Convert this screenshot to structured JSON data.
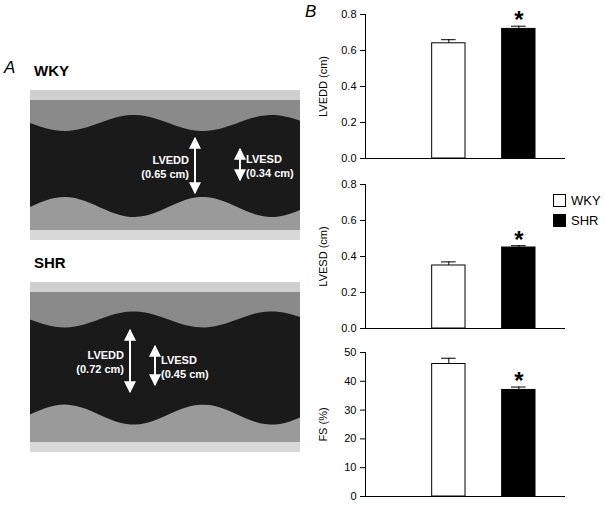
{
  "panel_labels": [
    "A",
    "B"
  ],
  "panel_a": {
    "images": [
      {
        "title": "WKY",
        "markers": [
          {
            "lines": [
              "LVEDD",
              "(0.65 cm)"
            ]
          },
          {
            "lines": [
              "LVESD",
              "(0.34 cm)"
            ]
          }
        ]
      },
      {
        "title": "SHR",
        "markers": [
          {
            "lines": [
              "LVEDD",
              "(0.72 cm)"
            ]
          },
          {
            "lines": [
              "LVESD",
              "(0.45 cm)"
            ]
          }
        ]
      }
    ]
  },
  "chart_data": [
    {
      "type": "bar",
      "ylabel": "LVEDD (cm)",
      "categories": [
        null
      ],
      "series": [
        {
          "name": "WKY",
          "color": "#ffffff",
          "values": [
            0.64
          ],
          "errors": [
            0.02
          ]
        },
        {
          "name": "SHR",
          "color": "#000000",
          "values": [
            0.72
          ],
          "errors": [
            0.015
          ],
          "annotation": "*"
        }
      ],
      "ylim": [
        0,
        0.8
      ],
      "yticks": [
        {
          "value": 0,
          "label": "0.0"
        },
        0.2,
        0.4,
        0.6,
        0.8
      ],
      "tick_labels": "y"
    },
    {
      "type": "bar",
      "ylabel": "LVESD (cm)",
      "categories": [
        null
      ],
      "series": [
        {
          "name": "WKY",
          "color": "#ffffff",
          "values": [
            0.35
          ],
          "errors": [
            0.02
          ]
        },
        {
          "name": "SHR",
          "color": "#000000",
          "values": [
            0.45
          ],
          "errors": [
            0.01
          ],
          "annotation": "*"
        }
      ],
      "ylim": [
        0,
        0.8
      ],
      "yticks": [
        {
          "value": 0,
          "label": "0.0"
        },
        0.2,
        0.4,
        0.6,
        0.8
      ],
      "tick_labels": "y",
      "legend": "right"
    },
    {
      "type": "bar",
      "ylabel": "FS (%)",
      "categories": [
        null
      ],
      "series": [
        {
          "name": "WKY",
          "color": "#ffffff",
          "values": [
            46
          ],
          "errors": [
            2
          ]
        },
        {
          "name": "SHR",
          "color": "#000000",
          "values": [
            37
          ],
          "errors": [
            1
          ],
          "annotation": "*"
        }
      ],
      "ylim": [
        0,
        50
      ],
      "yticks": [
        0,
        10,
        20,
        30,
        40,
        50
      ],
      "tick_labels": "y"
    }
  ]
}
